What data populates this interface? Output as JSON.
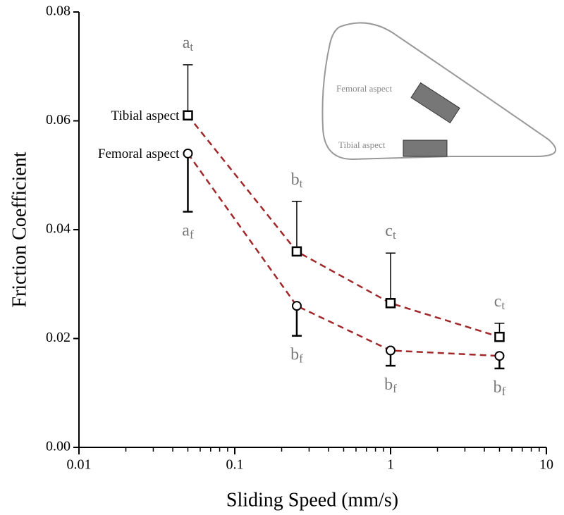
{
  "chart_data": {
    "type": "line",
    "xlabel": "Sliding Speed (mm/s)",
    "ylabel": "Friction Coefficient",
    "xscale": "log",
    "xlim": [
      0.01,
      10
    ],
    "xticks": [
      0.01,
      0.1,
      1,
      10
    ],
    "ylim": [
      0,
      0.08
    ],
    "yticks": [
      {
        "value": 0,
        "label": "0.00"
      },
      0.02,
      0.04,
      0.06,
      0.08
    ],
    "line_color": "#a0282a",
    "series": [
      {
        "name": "Tibial aspect",
        "marker": "square",
        "color": "#000000",
        "error_direction": "up",
        "x": [
          0.05,
          0.25,
          1,
          5
        ],
        "values": [
          0.061,
          0.036,
          0.0265,
          0.0203
        ],
        "errors": [
          0.0093,
          0.0092,
          0.0092,
          0.0025
        ],
        "letters": [
          "a",
          "b",
          "c",
          "c"
        ],
        "subscripts": [
          "t",
          "t",
          "t",
          "t"
        ]
      },
      {
        "name": "Femoral aspect",
        "marker": "circle",
        "color": "#000000",
        "error_direction": "down",
        "x": [
          0.05,
          0.25,
          1,
          5
        ],
        "values": [
          0.054,
          0.026,
          0.0178,
          0.0168
        ],
        "errors": [
          0.0107,
          0.0055,
          0.0028,
          0.0023
        ],
        "letters": [
          "a",
          "b",
          "b",
          "b"
        ],
        "subscripts": [
          "f",
          "f",
          "f",
          "f"
        ]
      }
    ],
    "inset": {
      "labels": [
        "Femoral aspect",
        "Tibial aspect"
      ]
    }
  }
}
